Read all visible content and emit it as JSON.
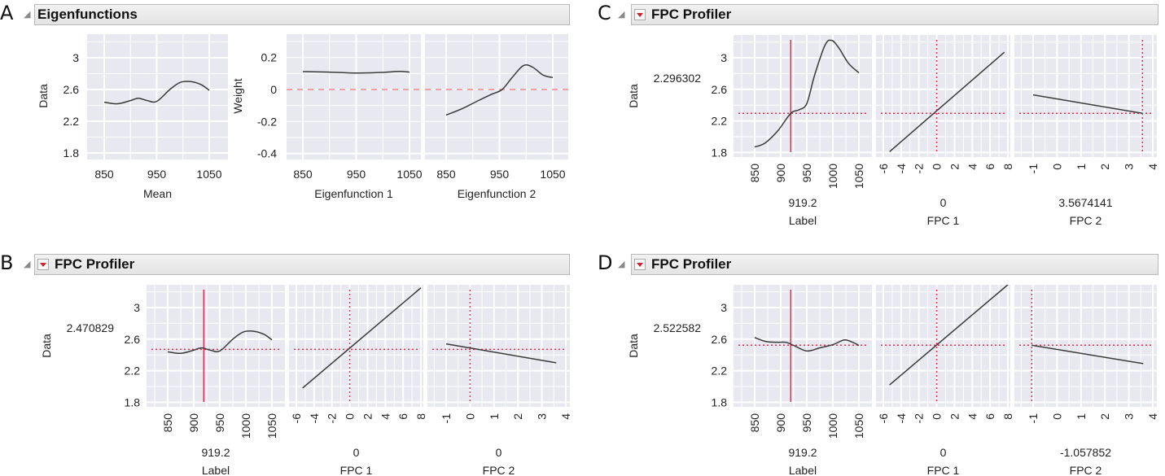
{
  "panels": {
    "A": {
      "letter": "A",
      "title": "Eigenfunctions"
    },
    "B": {
      "letter": "B",
      "title": "FPC Profiler"
    },
    "C": {
      "letter": "C",
      "title": "FPC Profiler"
    },
    "D": {
      "letter": "D",
      "title": "FPC Profiler"
    }
  },
  "colors": {
    "plot_bg": "#e8e8f0",
    "grid": "#ffffff",
    "curve": "#3a3a3a",
    "current": "#f0284a",
    "reference": "#f08a8a"
  },
  "chart_data": [
    {
      "panel": "A",
      "type": "line",
      "plots": [
        {
          "ylabel": "Data",
          "yticks": [
            1.8,
            2.2,
            2.6,
            3
          ],
          "ylim": [
            1.72,
            3.3
          ],
          "subplots": [
            {
              "xlabel": "Mean",
              "xticks": [
                850,
                950,
                1050
              ],
              "points": [
                [
                  850,
                  2.44
                ],
                [
                  875,
                  2.42
                ],
                [
                  900,
                  2.46
                ],
                [
                  915,
                  2.49
                ],
                [
                  932,
                  2.46
                ],
                [
                  950,
                  2.45
                ],
                [
                  975,
                  2.6
                ],
                [
                  995,
                  2.69
                ],
                [
                  1015,
                  2.7
                ],
                [
                  1035,
                  2.66
                ],
                [
                  1050,
                  2.59
                ]
              ]
            }
          ]
        },
        {
          "ylabel": "Weight",
          "yticks": [
            -0.4,
            -0.2,
            0,
            0.2
          ],
          "ylim": [
            -0.44,
            0.34
          ],
          "reference_line": 0,
          "subplots": [
            {
              "xlabel": "Eigenfunction 1",
              "xticks": [
                850,
                950,
                1050
              ],
              "points": [
                [
                  850,
                  0.112
                ],
                [
                  900,
                  0.109
                ],
                [
                  950,
                  0.103
                ],
                [
                  1000,
                  0.107
                ],
                [
                  1030,
                  0.113
                ],
                [
                  1050,
                  0.109
                ]
              ]
            },
            {
              "xlabel": "Eigenfunction 2",
              "xticks": [
                850,
                950,
                1050
              ],
              "points": [
                [
                  850,
                  -0.16
                ],
                [
                  880,
                  -0.12
                ],
                [
                  910,
                  -0.07
                ],
                [
                  935,
                  -0.03
                ],
                [
                  955,
                  0.0
                ],
                [
                  975,
                  0.08
                ],
                [
                  995,
                  0.15
                ],
                [
                  1012,
                  0.14
                ],
                [
                  1032,
                  0.09
                ],
                [
                  1050,
                  0.075
                ]
              ]
            }
          ]
        }
      ]
    },
    {
      "panel": "B",
      "type": "line",
      "ylabel": "Data",
      "yticks": [
        1.8,
        2.2,
        2.6,
        3
      ],
      "ylim": [
        1.72,
        3.3
      ],
      "current_value": "2.470829",
      "subplots": [
        {
          "xlabel": "Label",
          "xticks": [
            850,
            900,
            950,
            1000,
            1050
          ],
          "current": "919.2",
          "current_style": "solid",
          "points": [
            [
              850,
              2.44
            ],
            [
              875,
              2.42
            ],
            [
              900,
              2.46
            ],
            [
              915,
              2.49
            ],
            [
              932,
              2.46
            ],
            [
              950,
              2.45
            ],
            [
              975,
              2.6
            ],
            [
              995,
              2.69
            ],
            [
              1015,
              2.7
            ],
            [
              1035,
              2.66
            ],
            [
              1050,
              2.59
            ]
          ]
        },
        {
          "xlabel": "FPC 1",
          "xticks": [
            -6,
            -4,
            -2,
            0,
            2,
            4,
            6,
            8
          ],
          "current": "0",
          "current_style": "dotted",
          "points": [
            [
              -5.3,
              1.98
            ],
            [
              8,
              3.25
            ]
          ]
        },
        {
          "xlabel": "FPC 2",
          "xticks": [
            -1,
            0,
            1,
            2,
            3,
            4
          ],
          "current": "0",
          "current_style": "dotted",
          "points": [
            [
              -1,
              2.54
            ],
            [
              3.6,
              2.3
            ]
          ]
        }
      ]
    },
    {
      "panel": "C",
      "type": "line",
      "ylabel": "Data",
      "yticks": [
        1.8,
        2.2,
        2.6,
        3
      ],
      "ylim": [
        1.72,
        3.3
      ],
      "current_value": "2.296302",
      "subplots": [
        {
          "xlabel": "Label",
          "xticks": [
            850,
            900,
            950,
            1000,
            1050
          ],
          "current": "919.2",
          "current_style": "solid",
          "points": [
            [
              850,
              1.87
            ],
            [
              870,
              1.92
            ],
            [
              895,
              2.08
            ],
            [
              919.2,
              2.296
            ],
            [
              935,
              2.34
            ],
            [
              950,
              2.42
            ],
            [
              965,
              2.78
            ],
            [
              985,
              3.16
            ],
            [
              998,
              3.22
            ],
            [
              1012,
              3.12
            ],
            [
              1030,
              2.93
            ],
            [
              1050,
              2.81
            ]
          ]
        },
        {
          "xlabel": "FPC 1",
          "xticks": [
            -6,
            -4,
            -2,
            0,
            2,
            4,
            6,
            8
          ],
          "current": "0",
          "current_style": "dotted",
          "points": [
            [
              -5.3,
              1.81
            ],
            [
              7.6,
              3.07
            ]
          ]
        },
        {
          "xlabel": "FPC 2",
          "xticks": [
            -1,
            0,
            1,
            2,
            3,
            4
          ],
          "current": "3.5674141",
          "current_style": "dotted",
          "points": [
            [
              -1,
              2.53
            ],
            [
              3.5674141,
              2.296
            ]
          ]
        }
      ]
    },
    {
      "panel": "D",
      "type": "line",
      "ylabel": "Data",
      "yticks": [
        1.8,
        2.2,
        2.6,
        3
      ],
      "ylim": [
        1.72,
        3.3
      ],
      "current_value": "2.522582",
      "subplots": [
        {
          "xlabel": "Label",
          "xticks": [
            850,
            900,
            950,
            1000,
            1050
          ],
          "current": "919.2",
          "current_style": "solid",
          "points": [
            [
              850,
              2.62
            ],
            [
              872,
              2.57
            ],
            [
              895,
              2.56
            ],
            [
              910,
              2.56
            ],
            [
              925,
              2.52
            ],
            [
              950,
              2.45
            ],
            [
              975,
              2.49
            ],
            [
              1000,
              2.53
            ],
            [
              1022,
              2.59
            ],
            [
              1038,
              2.56
            ],
            [
              1050,
              2.52
            ]
          ]
        },
        {
          "xlabel": "FPC 1",
          "xticks": [
            -6,
            -4,
            -2,
            0,
            2,
            4,
            6,
            8
          ],
          "current": "0",
          "current_style": "dotted",
          "points": [
            [
              -5.3,
              2.02
            ],
            [
              8,
              3.29
            ]
          ]
        },
        {
          "xlabel": "FPC 2",
          "xticks": [
            -1,
            0,
            1,
            2,
            3,
            4
          ],
          "current": "-1.057852",
          "current_style": "dotted",
          "points": [
            [
              -1.057852,
              2.5226
            ],
            [
              3.6,
              2.29
            ]
          ]
        }
      ]
    }
  ]
}
